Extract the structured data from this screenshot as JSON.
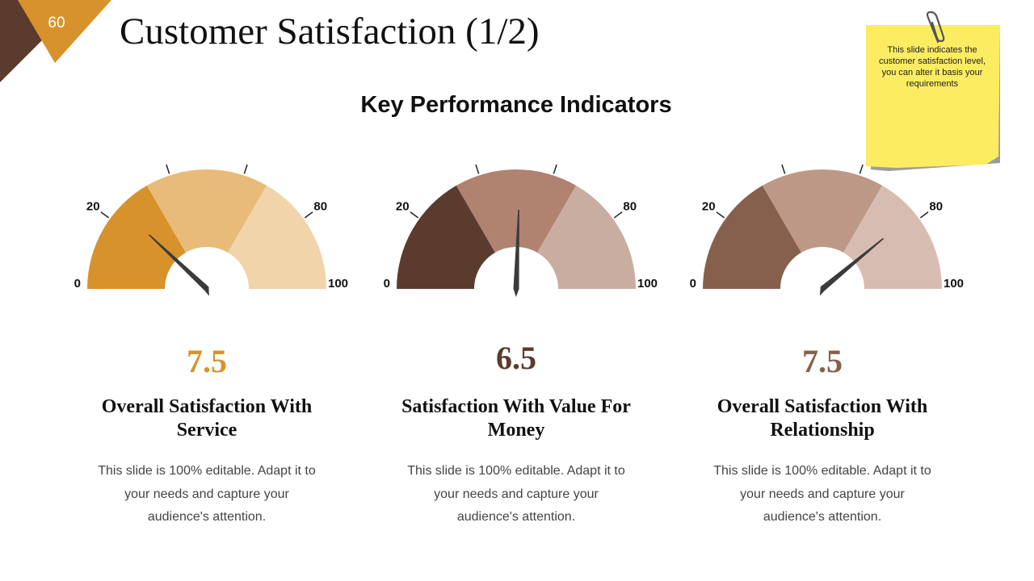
{
  "slide": {
    "number": "60",
    "title": "Customer Satisfaction (1/2)",
    "subtitle": "Key Performance Indicators",
    "note": "This slide indicates the customer satisfaction level, you can alter it basis your requirements",
    "colors": {
      "accent": "#D8922B",
      "dark": "#5B3B2D",
      "note_yellow": "#FCEC62"
    }
  },
  "chart_data": [
    {
      "type": "gauge",
      "ticks": [
        "0",
        "20",
        "40",
        "60",
        "80",
        "100"
      ],
      "range": [
        0,
        100
      ],
      "bands": [
        {
          "from": 0,
          "to": 33.3,
          "color": "#D8922B"
        },
        {
          "from": 33.3,
          "to": 66.7,
          "color": "#E9BB7A"
        },
        {
          "from": 66.7,
          "to": 100,
          "color": "#F1D4A9"
        }
      ],
      "needle": 24,
      "value": "7.5",
      "value_color": "#D8922B",
      "title": "Overall Satisfaction With Service",
      "description": "This slide is 100% editable. Adapt it to your needs and capture your audience's attention."
    },
    {
      "type": "gauge",
      "ticks": [
        "0",
        "20",
        "40",
        "60",
        "80",
        "100"
      ],
      "range": [
        0,
        100
      ],
      "bands": [
        {
          "from": 0,
          "to": 33.3,
          "color": "#5B3B2D"
        },
        {
          "from": 33.3,
          "to": 66.7,
          "color": "#B08270"
        },
        {
          "from": 66.7,
          "to": 100,
          "color": "#C9ADA0"
        }
      ],
      "needle": 51,
      "value": "6.5",
      "value_color": "#5B3B2D",
      "title": "Satisfaction With Value For Money",
      "description": "This slide is 100% editable. Adapt it to your needs and capture your audience's attention."
    },
    {
      "type": "gauge",
      "ticks": [
        "0",
        "20",
        "40",
        "60",
        "80",
        "100"
      ],
      "range": [
        0,
        100
      ],
      "bands": [
        {
          "from": 0,
          "to": 33.3,
          "color": "#87604D"
        },
        {
          "from": 33.3,
          "to": 66.7,
          "color": "#BE9886"
        },
        {
          "from": 66.7,
          "to": 100,
          "color": "#D7BDB1"
        }
      ],
      "needle": 78,
      "value": "7.5",
      "value_color": "#87604D",
      "title": "Overall Satisfaction With Relationship",
      "description": "This slide is 100% editable. Adapt it to your needs and capture your audience's attention."
    }
  ]
}
